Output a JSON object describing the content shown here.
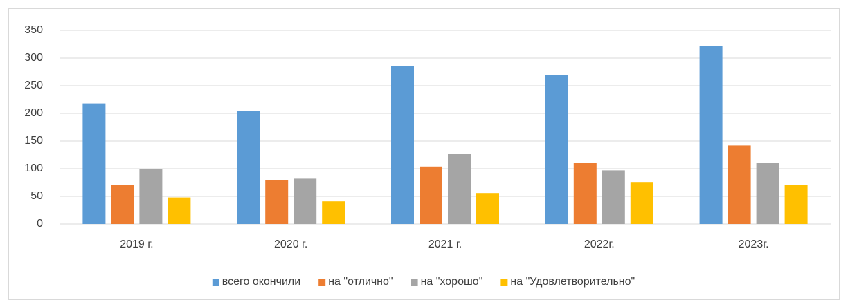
{
  "chart_data": {
    "type": "bar",
    "categories": [
      "2019 г.",
      "2020 г.",
      "2021 г.",
      "2022г.",
      "2023г."
    ],
    "series": [
      {
        "name": "всего окончили",
        "color": "#5b9bd5",
        "values": [
          218,
          205,
          286,
          269,
          322
        ]
      },
      {
        "name": "на \"отлично\"",
        "color": "#ed7d31",
        "values": [
          70,
          80,
          104,
          110,
          142
        ]
      },
      {
        "name": "на \"хорошо\"",
        "color": "#a5a5a5",
        "values": [
          100,
          82,
          127,
          97,
          110
        ]
      },
      {
        "name": "на \"Удовлетворительно\"",
        "color": "#ffc000",
        "values": [
          48,
          41,
          56,
          76,
          70
        ]
      }
    ],
    "ylim": [
      0,
      350
    ],
    "yticks": [
      0,
      50,
      100,
      150,
      200,
      250,
      300,
      350
    ],
    "grid": true,
    "legend": "bottom"
  }
}
